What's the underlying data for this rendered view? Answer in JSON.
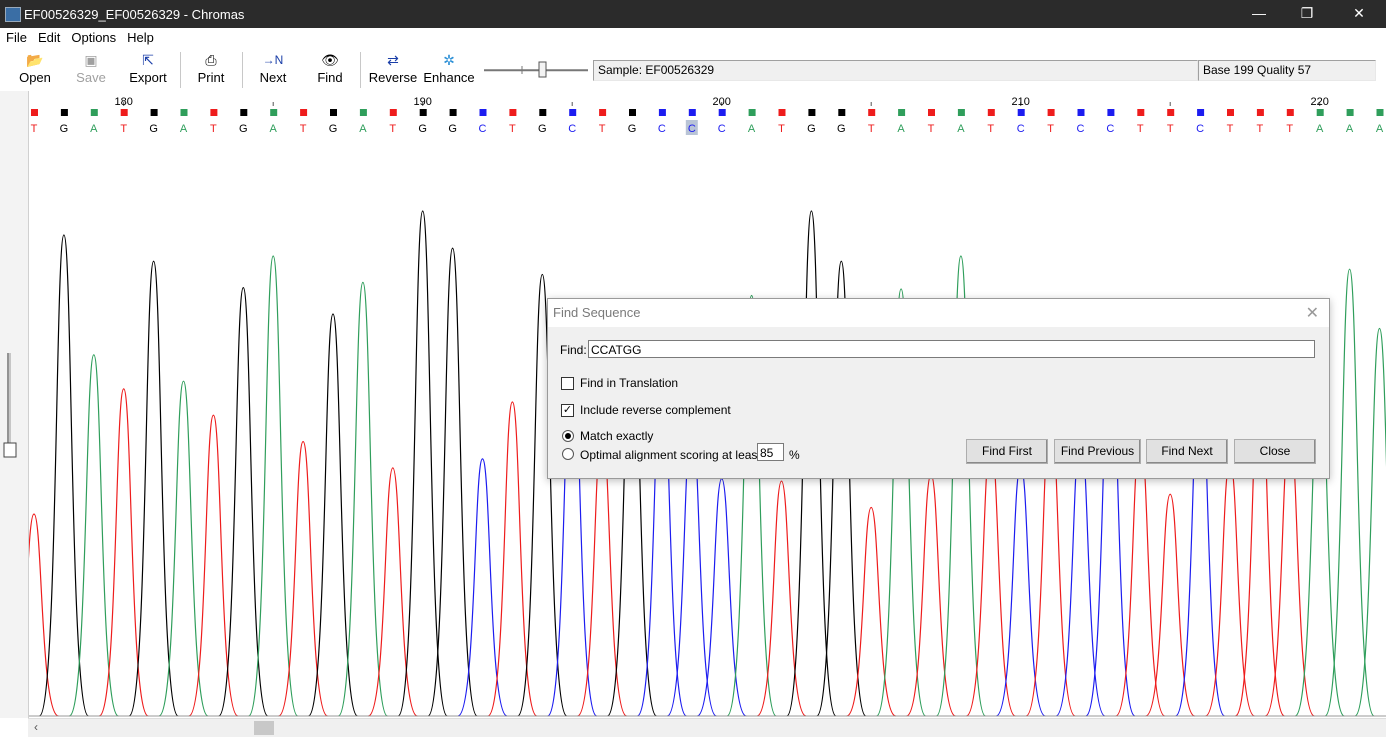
{
  "window": {
    "title": "EF00526329_EF00526329 - Chromas",
    "minimize_glyph": "—",
    "restore_glyph": "❐",
    "close_glyph": "✕"
  },
  "menu": [
    "File",
    "Edit",
    "Options",
    "Help"
  ],
  "toolbar": {
    "buttons": [
      {
        "label": "Open",
        "icon": "folder-open-icon",
        "glyph": "📂",
        "enabled": true
      },
      {
        "label": "Save",
        "icon": "floppy-disk-icon",
        "glyph": "▣",
        "enabled": false
      },
      {
        "label": "Export",
        "icon": "export-arrow-icon",
        "glyph": "⇱",
        "enabled": true
      },
      {
        "label": "Print",
        "icon": "printer-icon",
        "glyph": "⎙",
        "enabled": true
      },
      {
        "label": "Next",
        "icon": "next-n-icon",
        "glyph": "→N",
        "enabled": true
      },
      {
        "label": "Find",
        "icon": "binoculars-icon",
        "glyph": "👁",
        "enabled": true
      },
      {
        "label": "Reverse",
        "icon": "reverse-arrows-icon",
        "glyph": "⇄",
        "enabled": true
      },
      {
        "label": "Enhance",
        "icon": "sparkle-icon",
        "glyph": "✲",
        "enabled": true
      }
    ],
    "sample": "Sample: EF00526329",
    "base_quality": "Base 199  Quality 57",
    "zoom_level": 0.55
  },
  "trace": {
    "colors": {
      "A": "#2f9e5b",
      "C": "#1c1cf0",
      "G": "#000000",
      "T": "#ee1c1c"
    },
    "first_base_index": 177,
    "bases": "TGATGATGATGATGGCTGCTGCCCATGGTATATCTCCTTCTTTAAA",
    "highlight_base": 199,
    "position_labels": [
      "180",
      "190",
      "200",
      "210",
      "220"
    ]
  },
  "dialog": {
    "title": "Find Sequence",
    "find_label": "Find:",
    "find_value": "CCATGG",
    "find_in_translation": {
      "label": "Find in Translation",
      "checked": false
    },
    "include_reverse": {
      "label": "Include reverse complement",
      "checked": true
    },
    "match_exactly": {
      "label": "Match exactly",
      "selected": true
    },
    "optimal_alignment": {
      "label": "Optimal alignment scoring at least",
      "selected": false
    },
    "percent_value": "85",
    "percent_unit": "%",
    "buttons": {
      "find_first": "Find First",
      "find_previous": "Find Previous",
      "find_next": "Find Next",
      "close": "Close"
    }
  }
}
